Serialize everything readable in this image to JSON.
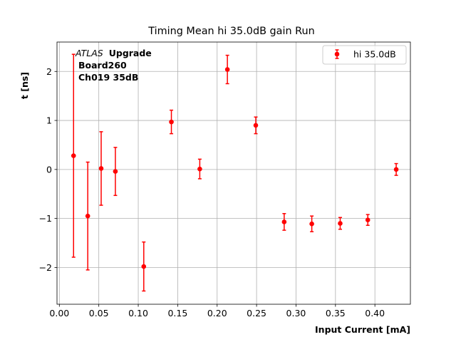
{
  "chart_data": {
    "type": "scatter",
    "title": "Timing Mean hi 35.0dB gain Run",
    "xlabel": "Input Current [mA]",
    "ylabel": "t [ns]",
    "xlim": [
      -0.003,
      0.445
    ],
    "ylim": [
      -2.75,
      2.6
    ],
    "grid": true,
    "legend_position": "top-right",
    "x_ticks": [
      "0.00",
      "0.05",
      "0.10",
      "0.15",
      "0.20",
      "0.25",
      "0.30",
      "0.35",
      "0.40"
    ],
    "y_ticks": [
      "−2",
      "−1",
      "0",
      "1",
      "2"
    ],
    "annotation": {
      "atlas": "ATLAS",
      "upgrade": "Upgrade",
      "line2": "Board260",
      "line3": "Ch019 35dB"
    },
    "series": [
      {
        "name": "hi 35.0dB",
        "color": "#ff0000",
        "points": [
          {
            "x": 0.018,
            "y": 0.28,
            "err": 2.07
          },
          {
            "x": 0.036,
            "y": -0.95,
            "err": 1.1
          },
          {
            "x": 0.053,
            "y": 0.02,
            "err": 0.75
          },
          {
            "x": 0.071,
            "y": -0.04,
            "err": 0.49
          },
          {
            "x": 0.107,
            "y": -1.98,
            "err": 0.5
          },
          {
            "x": 0.142,
            "y": 0.97,
            "err": 0.24
          },
          {
            "x": 0.178,
            "y": 0.01,
            "err": 0.2
          },
          {
            "x": 0.213,
            "y": 2.04,
            "err": 0.29
          },
          {
            "x": 0.249,
            "y": 0.9,
            "err": 0.17
          },
          {
            "x": 0.285,
            "y": -1.07,
            "err": 0.17
          },
          {
            "x": 0.32,
            "y": -1.11,
            "err": 0.16
          },
          {
            "x": 0.356,
            "y": -1.1,
            "err": 0.12
          },
          {
            "x": 0.391,
            "y": -1.03,
            "err": 0.11
          },
          {
            "x": 0.427,
            "y": 0.0,
            "err": 0.12
          }
        ]
      }
    ]
  }
}
